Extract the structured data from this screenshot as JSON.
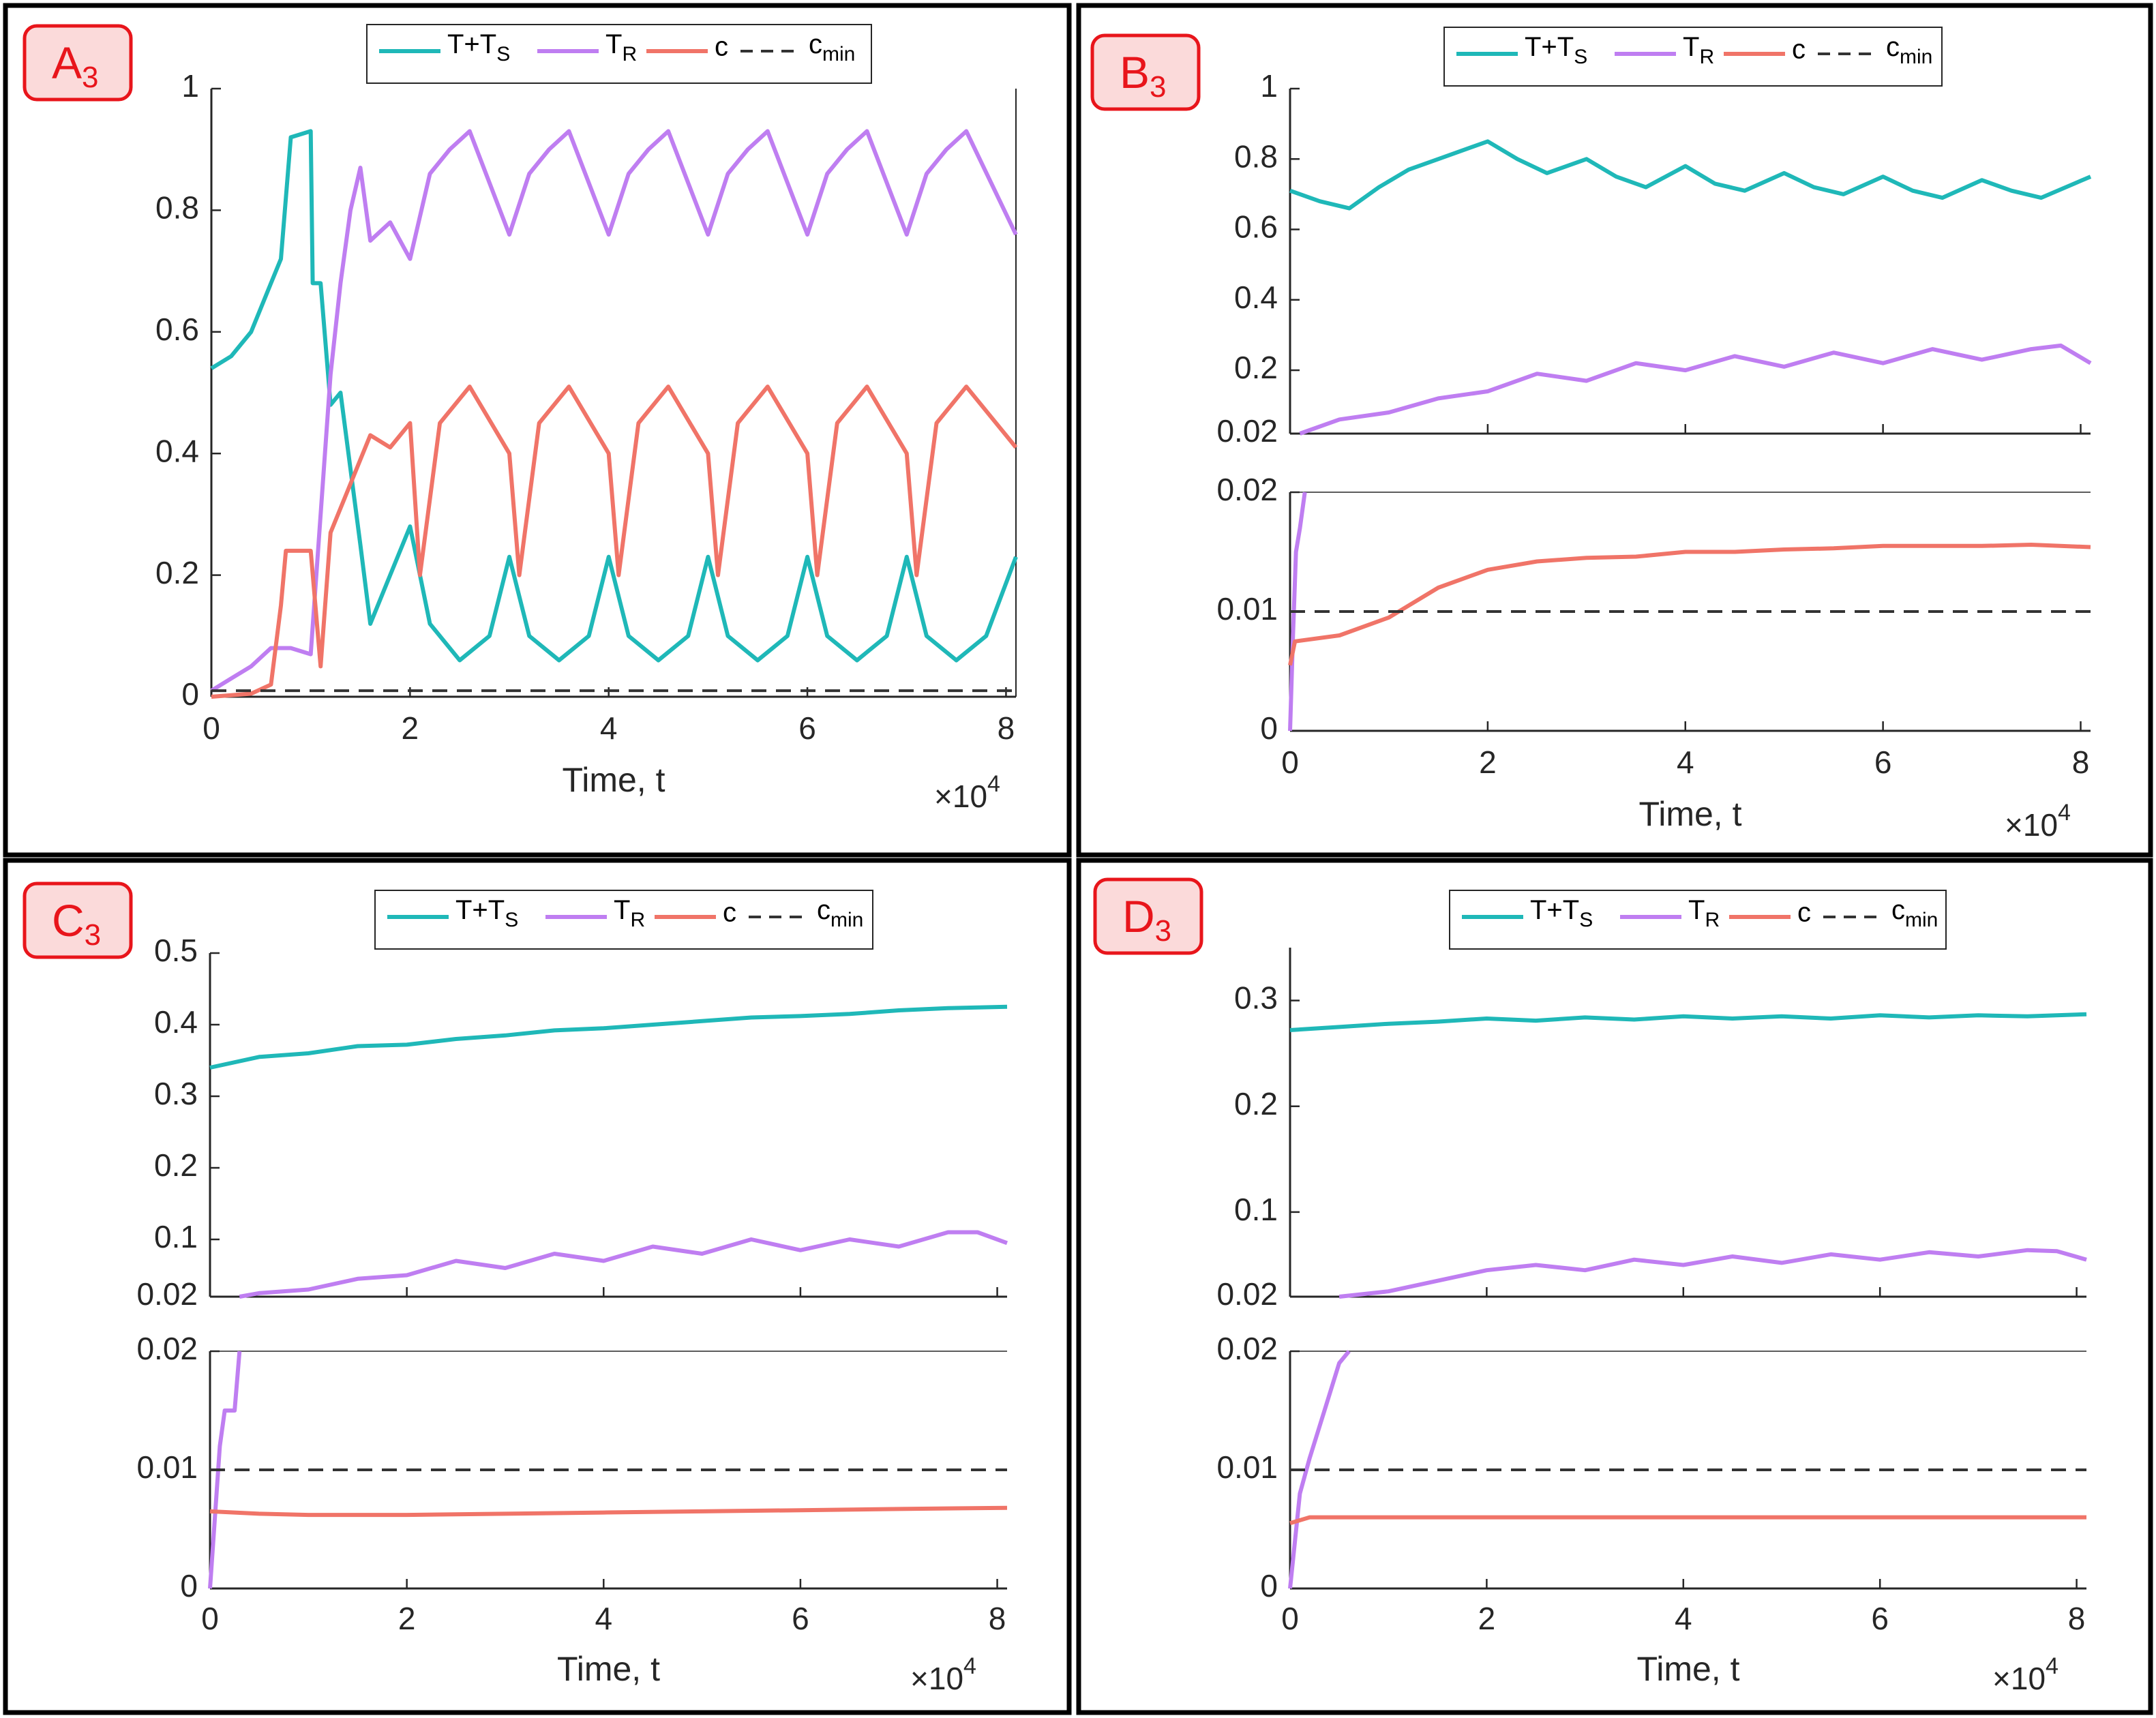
{
  "figure": {
    "colors": {
      "T_plus_TS": "#1fb8b8",
      "T_R": "#bf7ef1",
      "c": "#f07468",
      "c_min": "#333333",
      "badge_fill": "#fbdada",
      "badge_stroke": "#e8151b"
    }
  },
  "chart_data": [
    {
      "panel": "A",
      "badge_letter": "A",
      "badge_sub": "3",
      "type": "line",
      "legend": {
        "t_main": "T+T",
        "t_sub": "S",
        "tr_main": "T",
        "tr_sub": "R",
        "c_main": "c",
        "cmin_main": "c",
        "cmin_sub": "min"
      },
      "xlabel": "Time, t",
      "x_multiplier": "×10",
      "x_multiplier_exp": "4",
      "xlim": [
        0,
        8.1
      ],
      "xticks": [
        0,
        2,
        4,
        6,
        8
      ],
      "axes": [
        {
          "ylim": [
            0,
            1
          ],
          "yticks": [
            0,
            0.2,
            0.4,
            0.6,
            0.8,
            1
          ],
          "ytick_labels": [
            "0",
            "0.2",
            "0.4",
            "0.6",
            "0.8",
            "1"
          ]
        }
      ],
      "series": {
        "T_plus_TS": {
          "name": "T+T_S",
          "x": [
            0,
            0.2,
            0.4,
            0.6,
            0.7,
            0.8,
            0.9,
            1.0,
            1.02,
            1.1,
            1.2,
            1.3,
            1.5,
            1.6,
            1.8,
            2.0,
            2.2,
            2.5,
            2.8,
            3.0,
            3.2,
            3.5,
            3.8,
            4.0,
            4.2,
            4.5,
            4.8,
            5.0,
            5.2,
            5.5,
            5.8,
            6.0,
            6.2,
            6.5,
            6.8,
            7.0,
            7.2,
            7.5,
            7.8,
            8.1
          ],
          "y": [
            0.54,
            0.56,
            0.6,
            0.68,
            0.72,
            0.92,
            0.925,
            0.93,
            0.68,
            0.68,
            0.48,
            0.5,
            0.25,
            0.12,
            0.2,
            0.28,
            0.12,
            0.06,
            0.1,
            0.23,
            0.1,
            0.06,
            0.1,
            0.23,
            0.1,
            0.06,
            0.1,
            0.23,
            0.1,
            0.06,
            0.1,
            0.23,
            0.1,
            0.06,
            0.1,
            0.23,
            0.1,
            0.06,
            0.1,
            0.23
          ]
        },
        "T_R": {
          "name": "T_R",
          "x": [
            0,
            0.2,
            0.4,
            0.6,
            0.8,
            1.0,
            1.2,
            1.3,
            1.4,
            1.5,
            1.6,
            1.8,
            2.0,
            2.2,
            2.4,
            2.6,
            3.0,
            3.2,
            3.4,
            3.6,
            4.0,
            4.2,
            4.4,
            4.6,
            5.0,
            5.2,
            5.4,
            5.6,
            6.0,
            6.2,
            6.4,
            6.6,
            7.0,
            7.2,
            7.4,
            7.6,
            8.1
          ],
          "y": [
            0.01,
            0.03,
            0.05,
            0.08,
            0.08,
            0.07,
            0.53,
            0.68,
            0.8,
            0.87,
            0.75,
            0.78,
            0.72,
            0.86,
            0.9,
            0.93,
            0.76,
            0.86,
            0.9,
            0.93,
            0.76,
            0.86,
            0.9,
            0.93,
            0.76,
            0.86,
            0.9,
            0.93,
            0.76,
            0.86,
            0.9,
            0.93,
            0.76,
            0.86,
            0.9,
            0.93,
            0.76
          ]
        },
        "c": {
          "name": "c",
          "x": [
            0,
            0.4,
            0.6,
            0.7,
            0.75,
            1.0,
            1.1,
            1.2,
            1.4,
            1.6,
            1.8,
            2.0,
            2.1,
            2.3,
            2.6,
            3.0,
            3.1,
            3.3,
            3.6,
            4.0,
            4.1,
            4.3,
            4.6,
            5.0,
            5.1,
            5.3,
            5.6,
            6.0,
            6.1,
            6.3,
            6.6,
            7.0,
            7.1,
            7.3,
            7.6,
            8.1
          ],
          "y": [
            0,
            0.005,
            0.02,
            0.15,
            0.24,
            0.24,
            0.05,
            0.27,
            0.35,
            0.43,
            0.41,
            0.45,
            0.2,
            0.45,
            0.51,
            0.4,
            0.2,
            0.45,
            0.51,
            0.4,
            0.2,
            0.45,
            0.51,
            0.4,
            0.2,
            0.45,
            0.51,
            0.4,
            0.2,
            0.45,
            0.51,
            0.4,
            0.2,
            0.45,
            0.51,
            0.41
          ]
        },
        "c_min": {
          "name": "c_min",
          "value": 0.01
        }
      }
    },
    {
      "panel": "B",
      "badge_letter": "B",
      "badge_sub": "3",
      "type": "line",
      "legend": {
        "t_main": "T+T",
        "t_sub": "S",
        "tr_main": "T",
        "tr_sub": "R",
        "c_main": "c",
        "cmin_main": "c",
        "cmin_sub": "min"
      },
      "xlabel": "Time, t",
      "x_multiplier": "×10",
      "x_multiplier_exp": "4",
      "xlim": [
        0,
        8.1
      ],
      "xticks": [
        0,
        2,
        4,
        6,
        8
      ],
      "axes": [
        {
          "ylim": [
            0.02,
            1
          ],
          "yticks": [
            0.02,
            0.2,
            0.4,
            0.6,
            0.8,
            1
          ],
          "ytick_labels": [
            "0.02",
            "0.2",
            "0.4",
            "0.6",
            "0.8",
            "1"
          ]
        },
        {
          "ylim": [
            0,
            0.02
          ],
          "yticks": [
            0,
            0.01,
            0.02
          ],
          "ytick_labels": [
            "0",
            "0.01",
            "0.02"
          ]
        }
      ],
      "series": {
        "T_plus_TS": {
          "name": "T+T_S",
          "x": [
            0,
            0.3,
            0.6,
            0.9,
            1.2,
            1.5,
            2.0,
            2.3,
            2.6,
            3.0,
            3.3,
            3.6,
            4.0,
            4.3,
            4.6,
            5.0,
            5.3,
            5.6,
            6.0,
            6.3,
            6.6,
            7.0,
            7.3,
            7.6,
            8.1
          ],
          "y": [
            0.71,
            0.68,
            0.66,
            0.72,
            0.77,
            0.8,
            0.85,
            0.8,
            0.76,
            0.8,
            0.75,
            0.72,
            0.78,
            0.73,
            0.71,
            0.76,
            0.72,
            0.7,
            0.75,
            0.71,
            0.69,
            0.74,
            0.71,
            0.69,
            0.75
          ]
        },
        "T_R": {
          "name": "T_R",
          "x": [
            0.1,
            0.5,
            1.0,
            1.5,
            2.0,
            2.5,
            3.0,
            3.5,
            4.0,
            4.5,
            5.0,
            5.5,
            6.0,
            6.5,
            7.0,
            7.5,
            7.8,
            8.1
          ],
          "y": [
            0.02,
            0.06,
            0.08,
            0.12,
            0.14,
            0.19,
            0.17,
            0.22,
            0.2,
            0.24,
            0.21,
            0.25,
            0.22,
            0.26,
            0.23,
            0.26,
            0.27,
            0.22
          ]
        },
        "T_R_lower": {
          "name": "T_R",
          "x": [
            0,
            0.03,
            0.06,
            0.1,
            0.15
          ],
          "y": [
            0.0,
            0.008,
            0.015,
            0.017,
            0.02
          ]
        },
        "c": {
          "name": "c",
          "x": [
            0,
            0.05,
            0.5,
            1.0,
            1.5,
            2.0,
            2.5,
            3.0,
            3.5,
            4.0,
            4.5,
            5.0,
            5.5,
            6.0,
            6.5,
            7.0,
            7.5,
            8.1
          ],
          "y": [
            0.0055,
            0.0075,
            0.008,
            0.0095,
            0.012,
            0.0135,
            0.0142,
            0.0145,
            0.0146,
            0.015,
            0.015,
            0.0152,
            0.0153,
            0.0155,
            0.0155,
            0.0155,
            0.0156,
            0.0154
          ]
        },
        "c_min": {
          "name": "c_min",
          "value": 0.01
        }
      }
    },
    {
      "panel": "C",
      "badge_letter": "C",
      "badge_sub": "3",
      "type": "line",
      "legend": {
        "t_main": "T+T",
        "t_sub": "S",
        "tr_main": "T",
        "tr_sub": "R",
        "c_main": "c",
        "cmin_main": "c",
        "cmin_sub": "min"
      },
      "xlabel": "Time, t",
      "x_multiplier": "×10",
      "x_multiplier_exp": "4",
      "xlim": [
        0,
        8.1
      ],
      "xticks": [
        0,
        2,
        4,
        6,
        8
      ],
      "axes": [
        {
          "ylim": [
            0.02,
            0.5
          ],
          "yticks": [
            0.02,
            0.1,
            0.2,
            0.3,
            0.4,
            0.5
          ],
          "ytick_labels": [
            "0.02",
            "0.1",
            "0.2",
            "0.3",
            "0.4",
            "0.5"
          ]
        },
        {
          "ylim": [
            0,
            0.02
          ],
          "yticks": [
            0,
            0.01,
            0.02
          ],
          "ytick_labels": [
            "0",
            "0.01",
            "0.02"
          ]
        }
      ],
      "series": {
        "T_plus_TS": {
          "name": "T+T_S",
          "x": [
            0,
            0.5,
            1.0,
            1.5,
            2.0,
            2.5,
            3.0,
            3.5,
            4.0,
            4.5,
            5.0,
            5.5,
            6.0,
            6.5,
            7.0,
            7.5,
            8.1
          ],
          "y": [
            0.34,
            0.355,
            0.36,
            0.37,
            0.372,
            0.38,
            0.385,
            0.392,
            0.395,
            0.4,
            0.405,
            0.41,
            0.412,
            0.415,
            0.42,
            0.423,
            0.425
          ]
        },
        "T_R": {
          "name": "T_R",
          "x": [
            0.3,
            0.5,
            1.0,
            1.5,
            2.0,
            2.5,
            3.0,
            3.5,
            4.0,
            4.5,
            5.0,
            5.5,
            6.0,
            6.5,
            7.0,
            7.5,
            7.8,
            8.1
          ],
          "y": [
            0.02,
            0.025,
            0.03,
            0.045,
            0.05,
            0.07,
            0.06,
            0.08,
            0.07,
            0.09,
            0.08,
            0.1,
            0.085,
            0.1,
            0.09,
            0.11,
            0.11,
            0.095
          ]
        },
        "T_R_lower": {
          "name": "T_R",
          "x": [
            0,
            0.1,
            0.15,
            0.25,
            0.3
          ],
          "y": [
            0.0,
            0.012,
            0.015,
            0.015,
            0.02
          ]
        },
        "c": {
          "name": "c",
          "x": [
            0,
            0.5,
            1.0,
            2.0,
            3.0,
            4.0,
            5.0,
            6.0,
            7.0,
            8.1
          ],
          "y": [
            0.0065,
            0.0063,
            0.0062,
            0.0062,
            0.0063,
            0.0064,
            0.0065,
            0.0066,
            0.0067,
            0.0068
          ]
        },
        "c_min": {
          "name": "c_min",
          "value": 0.01
        }
      }
    },
    {
      "panel": "D",
      "badge_letter": "D",
      "badge_sub": "3",
      "type": "line",
      "legend": {
        "t_main": "T+T",
        "t_sub": "S",
        "tr_main": "T",
        "tr_sub": "R",
        "c_main": "c",
        "cmin_main": "c",
        "cmin_sub": "min"
      },
      "xlabel": "Time, t",
      "x_multiplier": "×10",
      "x_multiplier_exp": "4",
      "xlim": [
        0,
        8.1
      ],
      "xticks": [
        0,
        2,
        4,
        6,
        8
      ],
      "axes": [
        {
          "ylim": [
            0.02,
            0.35
          ],
          "yticks": [
            0.02,
            0.1,
            0.2,
            0.3
          ],
          "ytick_labels": [
            "0.02",
            "0.1",
            "0.2",
            "0.3"
          ]
        },
        {
          "ylim": [
            0,
            0.02
          ],
          "yticks": [
            0,
            0.01,
            0.02
          ],
          "ytick_labels": [
            "0",
            "0.01",
            "0.02"
          ]
        }
      ],
      "series": {
        "T_plus_TS": {
          "name": "T+T_S",
          "x": [
            0,
            0.5,
            1.0,
            1.5,
            2.0,
            2.5,
            3.0,
            3.5,
            4.0,
            4.5,
            5.0,
            5.5,
            6.0,
            6.5,
            7.0,
            7.5,
            8.1
          ],
          "y": [
            0.272,
            0.275,
            0.278,
            0.28,
            0.283,
            0.281,
            0.284,
            0.282,
            0.285,
            0.283,
            0.285,
            0.283,
            0.286,
            0.284,
            0.286,
            0.285,
            0.287
          ]
        },
        "T_R": {
          "name": "T_R",
          "x": [
            0.5,
            1.0,
            1.5,
            2.0,
            2.5,
            3.0,
            3.5,
            4.0,
            4.5,
            5.0,
            5.5,
            6.0,
            6.5,
            7.0,
            7.5,
            7.8,
            8.1
          ],
          "y": [
            0.02,
            0.025,
            0.035,
            0.045,
            0.05,
            0.045,
            0.055,
            0.05,
            0.058,
            0.052,
            0.06,
            0.055,
            0.062,
            0.058,
            0.064,
            0.063,
            0.055
          ]
        },
        "T_R_lower": {
          "name": "T_R",
          "x": [
            0,
            0.1,
            0.2,
            0.35,
            0.5,
            0.6
          ],
          "y": [
            0.0,
            0.008,
            0.011,
            0.015,
            0.019,
            0.02
          ]
        },
        "c": {
          "name": "c",
          "x": [
            0,
            0.2,
            1.0,
            2.0,
            3.0,
            4.0,
            5.0,
            6.0,
            7.0,
            8.1
          ],
          "y": [
            0.0055,
            0.006,
            0.006,
            0.006,
            0.006,
            0.006,
            0.006,
            0.006,
            0.006,
            0.006
          ]
        },
        "c_min": {
          "name": "c_min",
          "value": 0.01
        }
      }
    }
  ]
}
